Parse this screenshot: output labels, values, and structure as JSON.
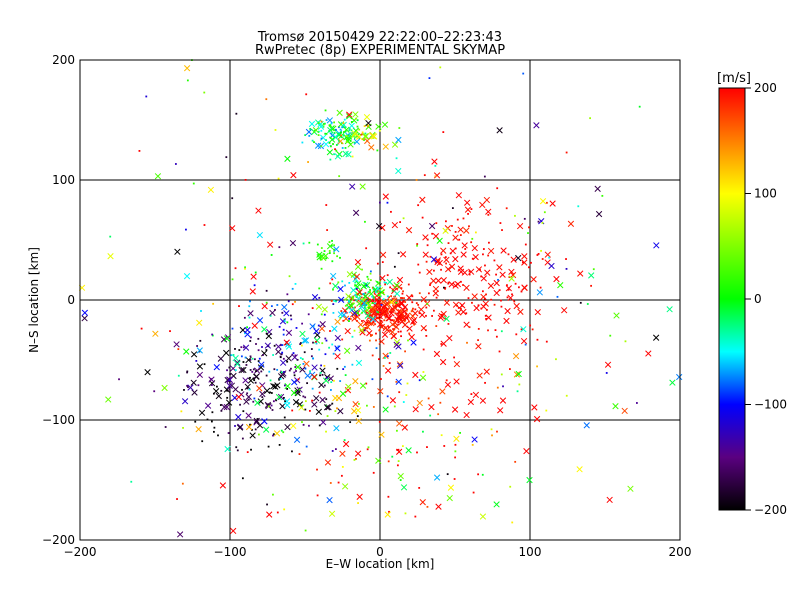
{
  "chart_data": {
    "type": "scatter",
    "title": "Tromsø 20150429 22:22:00–22:23:43",
    "subtitle": "RwPretec (8p) EXPERIMENTAL SKYMAP",
    "xlabel": "E–W location [km]",
    "ylabel": "N–S location [km]",
    "xlim": [
      -200,
      200
    ],
    "ylim": [
      -200,
      200
    ],
    "x_ticks": [
      -200,
      -100,
      0,
      100,
      200
    ],
    "y_ticks": [
      -200,
      -100,
      0,
      100,
      200
    ],
    "x_tick_labels": [
      "−200",
      "−100",
      "0",
      "100",
      "200"
    ],
    "y_tick_labels": [
      "−200",
      "−100",
      "0",
      "100",
      "200"
    ],
    "grid": true,
    "markers": [
      "x",
      "dot"
    ],
    "colorbar": {
      "label": "[m/s]",
      "range": [
        -200,
        200
      ],
      "ticks": [
        -200,
        -100,
        0,
        100,
        200
      ],
      "tick_labels": [
        "−200",
        "−100",
        "0",
        "100",
        "200"
      ],
      "stops": [
        {
          "value": -200,
          "color": "#000000"
        },
        {
          "value": -150,
          "color": "#5a0080"
        },
        {
          "value": -100,
          "color": "#0000ff"
        },
        {
          "value": -50,
          "color": "#00ffff"
        },
        {
          "value": 0,
          "color": "#00ff00"
        },
        {
          "value": 100,
          "color": "#ffff00"
        },
        {
          "value": 200,
          "color": "#ff0000"
        }
      ]
    },
    "clusters": [
      {
        "x": -30,
        "y": 138,
        "sx": 10,
        "sy": 8,
        "n": 120,
        "velocity": -20,
        "spread": 60
      },
      {
        "x": -10,
        "y": 138,
        "sx": 8,
        "sy": 8,
        "n": 35,
        "velocity": 100,
        "spread": 80
      },
      {
        "x": 2,
        "y": -10,
        "sx": 12,
        "sy": 9,
        "n": 260,
        "velocity": 190,
        "spread": 25
      },
      {
        "x": -12,
        "y": 4,
        "sx": 10,
        "sy": 10,
        "n": 110,
        "velocity": 0,
        "spread": 70
      },
      {
        "x": -80,
        "y": -70,
        "sx": 25,
        "sy": 25,
        "n": 230,
        "velocity": -180,
        "spread": 40
      },
      {
        "x": -55,
        "y": -45,
        "sx": 30,
        "sy": 30,
        "n": 160,
        "velocity": -80,
        "spread": 90
      },
      {
        "x": 55,
        "y": 20,
        "sx": 30,
        "sy": 30,
        "n": 240,
        "velocity": 200,
        "spread": 10
      },
      {
        "x": 10,
        "y": -100,
        "sx": 45,
        "sy": 50,
        "n": 160,
        "velocity": 120,
        "spread": 140
      },
      {
        "x": -35,
        "y": 40,
        "sx": 5,
        "sy": 5,
        "n": 25,
        "velocity": 20,
        "spread": 20
      },
      {
        "x": 0,
        "y": 0,
        "sx": 120,
        "sy": 110,
        "n": 330,
        "velocity": 50,
        "spread": 250
      }
    ]
  }
}
